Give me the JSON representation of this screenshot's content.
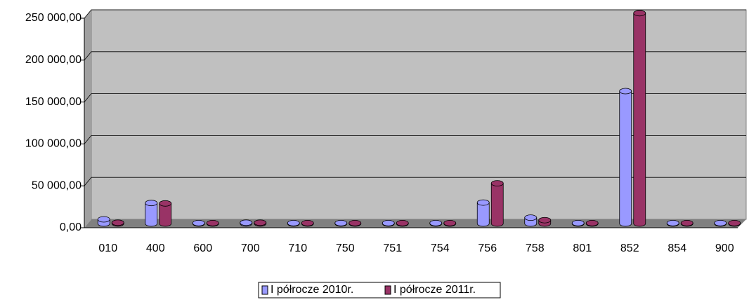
{
  "chart_data": {
    "type": "bar",
    "categories": [
      "010",
      "400",
      "600",
      "700",
      "710",
      "750",
      "751",
      "754",
      "756",
      "758",
      "801",
      "852",
      "854",
      "900"
    ],
    "series": [
      {
        "name": "I półrocze 2010r.",
        "color": "#9999ff",
        "values": [
          5000,
          24500,
          500,
          1000,
          500,
          500,
          500,
          500,
          25000,
          7000,
          500,
          158000,
          500,
          500
        ]
      },
      {
        "name": "I półrocze 2011r.",
        "color": "#993366",
        "values": [
          1000,
          24000,
          500,
          1000,
          500,
          500,
          500,
          500,
          48000,
          4000,
          500,
          251000,
          500,
          500
        ]
      }
    ],
    "ylim": [
      0,
      250000
    ],
    "yticks": [
      {
        "value": 0,
        "label": "0,00"
      },
      {
        "value": 50000,
        "label": "50 000,00"
      },
      {
        "value": 100000,
        "label": "100 000,00"
      },
      {
        "value": 150000,
        "label": "150 000,00"
      },
      {
        "value": 200000,
        "label": "200 000,00"
      },
      {
        "value": 250000,
        "label": "250 000,00"
      }
    ],
    "grid": true,
    "legend": "bottom"
  }
}
